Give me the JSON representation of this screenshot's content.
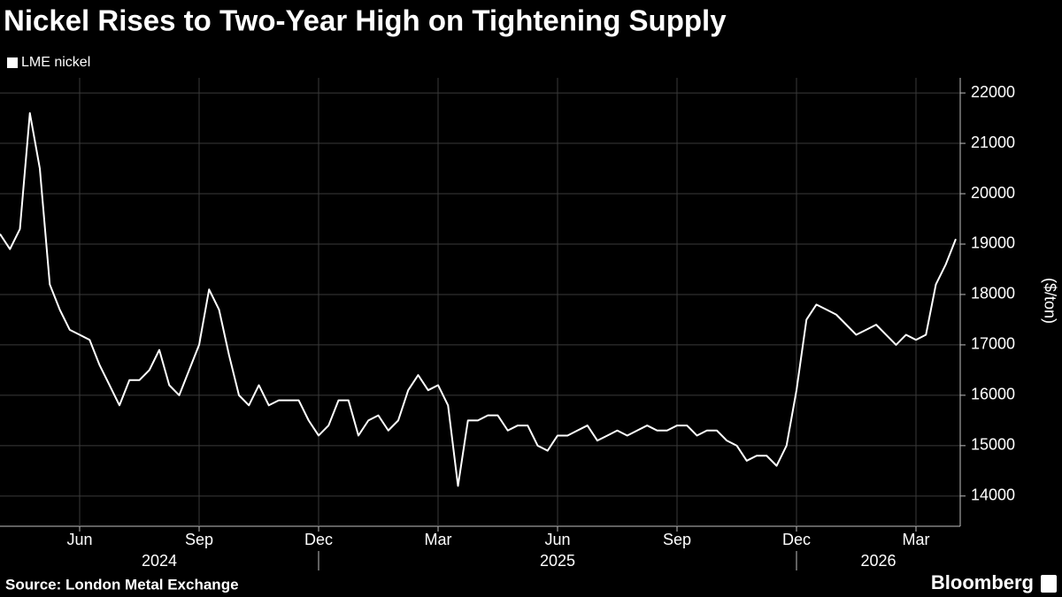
{
  "chart_data": {
    "type": "line",
    "title": "Nickel Rises to Two-Year High on Tightening Supply",
    "y_label": "($/ton)",
    "source": "Source: London Metal Exchange",
    "brand": "Bloomberg",
    "xlim": [
      "2024-04",
      "2026-04"
    ],
    "xticks": [
      {
        "value": "2024-06",
        "label": "Jun"
      },
      {
        "value": "2024-09",
        "label": "Sep"
      },
      {
        "value": "2024-12",
        "label": "Dec"
      },
      {
        "value": "2025-03",
        "label": "Mar"
      },
      {
        "value": "2025-06",
        "label": "Jun"
      },
      {
        "value": "2025-09",
        "label": "Sep"
      },
      {
        "value": "2025-12",
        "label": "Dec"
      },
      {
        "value": "2026-03",
        "label": "Mar"
      }
    ],
    "years": [
      "2024",
      "2025",
      "2026"
    ],
    "ylim": [
      13400,
      22300
    ],
    "yticks": [
      14000,
      15000,
      16000,
      17000,
      18000,
      19000,
      20000,
      21000,
      22000
    ],
    "grid": true,
    "legend": "top-left",
    "series": [
      {
        "name": "LME nickel",
        "color": "#ffffff",
        "values": [
          19200,
          18900,
          19300,
          21600,
          20500,
          18200,
          17700,
          17300,
          17200,
          17100,
          16600,
          16200,
          15800,
          16300,
          16300,
          16500,
          16900,
          16200,
          16000,
          16500,
          17000,
          18100,
          17700,
          16800,
          16000,
          15800,
          16200,
          15800,
          15900,
          15900,
          15900,
          15500,
          15200,
          15400,
          15900,
          15900,
          15200,
          15500,
          15600,
          15300,
          15500,
          16100,
          16400,
          16100,
          16200,
          15800,
          14200,
          15500,
          15500,
          15600,
          15600,
          15300,
          15400,
          15400,
          15000,
          14900,
          15200,
          15200,
          15300,
          15400,
          15100,
          15200,
          15300,
          15200,
          15300,
          15400,
          15300,
          15300,
          15400,
          15400,
          15200,
          15300,
          15300,
          15100,
          15000,
          14700,
          14800,
          14800,
          14600,
          15000,
          16100,
          17500,
          17800,
          17700,
          17600,
          17400,
          17200,
          17300,
          17400,
          17200,
          17000,
          17200,
          17100,
          17200,
          18200,
          18600,
          19100
        ]
      }
    ]
  }
}
